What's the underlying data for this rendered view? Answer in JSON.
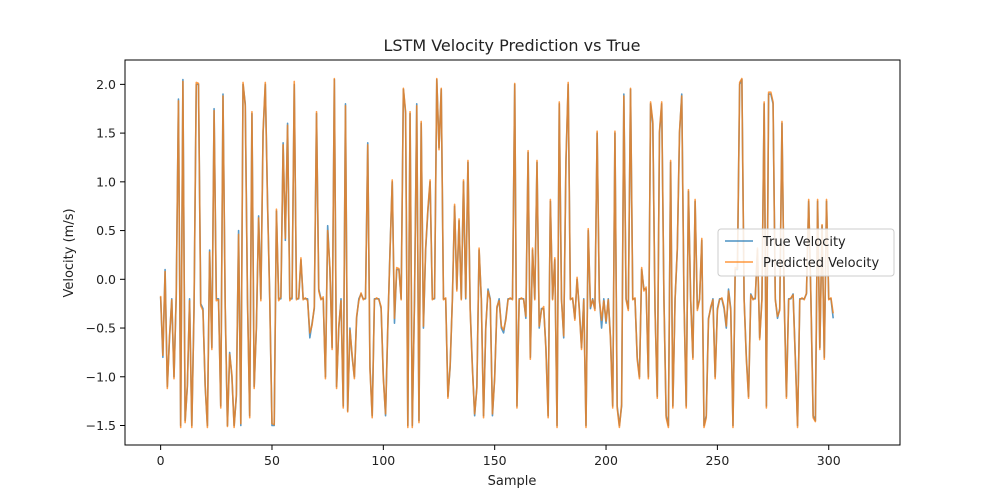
{
  "chart_data": {
    "type": "line",
    "title": "LSTM Velocity Prediction vs True",
    "xlabel": "Sample",
    "ylabel": "Velocity (m/s)",
    "xlim": [
      -16,
      332
    ],
    "ylim": [
      -1.7,
      2.25
    ],
    "xticks": [
      0,
      50,
      100,
      150,
      200,
      250,
      300
    ],
    "yticks": [
      -1.5,
      -1.0,
      -0.5,
      0.0,
      0.5,
      1.0,
      1.5,
      2.0
    ],
    "ytick_labels": [
      "−1.5",
      "−1.0",
      "−0.5",
      "0.0",
      "0.5",
      "1.0",
      "1.5",
      "2.0"
    ],
    "grid": false,
    "legend_position": "center-right",
    "series": [
      {
        "name": "True Velocity",
        "color": "#1f77b4",
        "values": [
          -0.18,
          -0.8,
          0.1,
          -1.1,
          -0.6,
          -0.2,
          -1.0,
          -0.18,
          1.85,
          -1.5,
          2.05,
          -1.45,
          -1.1,
          -0.2,
          -1.5,
          -0.3,
          2.0,
          2.0,
          -0.25,
          -0.3,
          -1.1,
          -1.5,
          0.3,
          -0.7,
          1.75,
          -0.2,
          -0.2,
          -1.3,
          1.9,
          -0.3,
          -1.5,
          -0.75,
          -1.0,
          -1.5,
          -1.2,
          0.5,
          -1.5,
          2.0,
          1.8,
          -0.2,
          -1.4,
          1.7,
          -1.1,
          -0.5,
          0.65,
          -0.2,
          1.5,
          2.0,
          0.8,
          -0.2,
          -1.5,
          -1.5,
          0.7,
          -0.2,
          -0.2,
          1.4,
          0.4,
          1.6,
          -0.2,
          -0.2,
          2.0,
          -0.2,
          -0.2,
          0.2,
          -0.2,
          -0.2,
          -0.2,
          -0.6,
          -0.45,
          -0.3,
          1.7,
          -0.1,
          -0.2,
          -0.2,
          -1.0,
          0.55,
          0.1,
          -0.7,
          2.05,
          -1.1,
          -0.5,
          -0.2,
          -1.3,
          1.8,
          -1.35,
          -0.5,
          -0.8,
          -1.0,
          -0.4,
          -0.2,
          -0.15,
          -0.2,
          -0.2,
          1.4,
          -0.9,
          -1.4,
          -0.2,
          -0.2,
          -0.2,
          -0.3,
          -1.0,
          -1.4,
          -0.5,
          0.3,
          1.0,
          -0.45,
          0.1,
          0.1,
          -0.2,
          1.95,
          1.7,
          -1.5,
          1.7,
          -1.5,
          -0.2,
          1.8,
          -1.45,
          1.6,
          -0.5,
          0.3,
          0.7,
          1.0,
          -0.2,
          -0.2,
          2.05,
          1.35,
          1.95,
          -0.2,
          -0.2,
          -1.2,
          -0.9,
          -0.2,
          0.75,
          -0.1,
          0.6,
          -0.2,
          1.0,
          -0.2,
          1.2,
          -0.3,
          -0.9,
          -1.4,
          -1.1,
          0.3,
          -0.2,
          -1.4,
          -0.5,
          -0.1,
          -0.2,
          -1.4,
          -1.0,
          -0.3,
          -0.2,
          -0.5,
          -0.55,
          -0.4,
          -0.2,
          -0.2,
          -0.2,
          2.0,
          -1.3,
          -0.2,
          -0.2,
          -0.2,
          -0.4,
          1.3,
          -0.8,
          0.3,
          -0.2,
          1.2,
          -0.5,
          -0.3,
          -0.3,
          -0.7,
          -1.4,
          0.8,
          -0.2,
          0.2,
          -1.5,
          1.8,
          -0.2,
          -0.6,
          1.2,
          2.0,
          -0.2,
          -0.2,
          -0.4,
          0.0,
          -0.3,
          -0.7,
          -0.2,
          -1.5,
          0.5,
          -0.3,
          -0.2,
          -0.3,
          1.5,
          -0.2,
          -0.5,
          -0.2,
          -0.45,
          -0.2,
          -0.6,
          -1.3,
          1.5,
          -1.3,
          -1.5,
          -1.3,
          1.9,
          -0.2,
          -0.3,
          1.95,
          -0.2,
          -0.2,
          -0.8,
          -1.0,
          0.1,
          -0.1,
          -0.1,
          -1.0,
          1.8,
          1.6,
          -0.3,
          -1.2,
          1.5,
          1.8,
          -0.2,
          -1.4,
          -1.5,
          1.2,
          -1.3,
          -0.2,
          0.3,
          1.5,
          1.9,
          -0.2,
          -1.3,
          0.9,
          -0.2,
          -0.8,
          0.8,
          -0.3,
          -0.2,
          0.4,
          -1.5,
          -1.4,
          -0.4,
          -0.3,
          -0.2,
          -1.0,
          -0.3,
          -0.2,
          -0.2,
          -0.3,
          -0.5,
          -0.1,
          -0.3,
          -1.5,
          0.1,
          0.1,
          2.0,
          2.05,
          -0.2,
          -0.8,
          -1.2,
          -0.15,
          -0.2,
          -0.2,
          0.3,
          -0.6,
          -0.2,
          1.8,
          -1.3,
          1.9,
          1.9,
          1.8,
          -0.2,
          -0.4,
          -0.3,
          1.6,
          -0.2,
          -1.2,
          -0.2,
          -0.2,
          -0.15,
          -0.8,
          -1.5,
          -0.2,
          -0.2,
          -0.2,
          -0.15,
          0.8,
          -0.2,
          -1.4,
          -1.45,
          0.8,
          -0.7,
          0.55,
          -0.8,
          0.8,
          -0.2,
          -0.2,
          -0.4
        ]
      },
      {
        "name": "Predicted Velocity",
        "color": "#ff7f0e",
        "values": [
          -0.17,
          -0.78,
          0.08,
          -1.12,
          -0.58,
          -0.21,
          -1.02,
          -0.16,
          1.83,
          -1.52,
          2.03,
          -1.47,
          -1.08,
          -0.22,
          -1.52,
          -0.28,
          2.02,
          2.01,
          -0.27,
          -0.32,
          -1.08,
          -1.52,
          0.28,
          -0.72,
          1.73,
          -0.22,
          -0.21,
          -1.32,
          1.88,
          -0.28,
          -1.51,
          -0.77,
          -0.98,
          -1.52,
          -1.18,
          0.46,
          -1.48,
          2.02,
          1.78,
          -0.22,
          -1.42,
          1.72,
          -1.12,
          -0.48,
          0.63,
          -0.22,
          1.52,
          2.02,
          0.78,
          -0.21,
          -1.48,
          -1.49,
          0.72,
          -0.22,
          -0.18,
          1.38,
          0.42,
          1.58,
          -0.22,
          -0.18,
          2.03,
          -0.21,
          -0.19,
          0.22,
          -0.21,
          -0.19,
          -0.22,
          -0.55,
          -0.47,
          -0.28,
          1.72,
          -0.12,
          -0.21,
          -0.18,
          -1.02,
          0.5,
          0.12,
          -0.72,
          2.06,
          -1.12,
          -0.48,
          -0.22,
          -1.32,
          1.78,
          -1.36,
          -0.52,
          -0.78,
          -1.02,
          -0.38,
          -0.22,
          -0.14,
          -0.21,
          -0.19,
          1.38,
          -0.92,
          -1.42,
          -0.21,
          -0.19,
          -0.21,
          -0.28,
          -1.02,
          -1.38,
          -0.48,
          0.28,
          1.02,
          -0.4,
          0.12,
          0.11,
          -0.21,
          1.96,
          1.72,
          -1.52,
          1.72,
          -1.52,
          -0.21,
          1.78,
          -1.47,
          1.62,
          -0.48,
          0.32,
          0.72,
          1.02,
          -0.21,
          -0.19,
          2.06,
          1.33,
          1.96,
          -0.21,
          -0.19,
          -1.22,
          -0.88,
          -0.21,
          0.77,
          -0.12,
          0.62,
          -0.21,
          1.02,
          -0.19,
          1.22,
          -0.32,
          -0.92,
          -1.38,
          -1.12,
          0.32,
          -0.21,
          -1.42,
          -0.48,
          -0.12,
          -0.21,
          -1.38,
          -1.02,
          -0.28,
          -0.22,
          -0.48,
          -0.52,
          -0.42,
          -0.21,
          -0.19,
          -0.21,
          2.01,
          -1.32,
          -0.21,
          -0.19,
          -0.21,
          -0.38,
          1.32,
          -0.82,
          0.32,
          -0.21,
          1.22,
          -0.48,
          -0.32,
          -0.28,
          -0.72,
          -1.42,
          0.82,
          -0.21,
          0.22,
          -1.52,
          1.82,
          -0.21,
          -0.58,
          1.22,
          2.02,
          -0.21,
          -0.19,
          -0.42,
          0.02,
          -0.32,
          -0.72,
          -0.21,
          -1.52,
          0.52,
          -0.28,
          -0.21,
          -0.32,
          1.52,
          -0.21,
          -0.42,
          -0.22,
          -0.43,
          -0.21,
          -0.62,
          -1.32,
          1.52,
          -1.32,
          -1.52,
          -1.28,
          1.88,
          -0.21,
          -0.32,
          1.96,
          -0.21,
          -0.19,
          -0.82,
          -1.02,
          0.12,
          -0.12,
          -0.08,
          -1.02,
          1.82,
          1.62,
          -0.32,
          -1.22,
          1.52,
          1.82,
          -0.21,
          -1.42,
          -1.52,
          1.22,
          -1.32,
          -0.21,
          0.32,
          1.52,
          1.88,
          -0.21,
          -1.32,
          0.92,
          -0.21,
          -0.82,
          0.82,
          -0.32,
          -0.21,
          0.42,
          -1.52,
          -1.42,
          -0.42,
          -0.28,
          -0.21,
          -1.02,
          -0.32,
          -0.21,
          -0.19,
          -0.28,
          -0.48,
          -0.12,
          -0.32,
          -1.52,
          0.12,
          0.11,
          2.02,
          2.06,
          -0.21,
          -0.82,
          -1.22,
          -0.16,
          -0.21,
          -0.19,
          0.32,
          -0.62,
          -0.21,
          1.82,
          -1.32,
          1.92,
          1.92,
          1.82,
          -0.21,
          -0.38,
          -0.32,
          1.62,
          -0.21,
          -1.22,
          -0.21,
          -0.19,
          -0.16,
          -0.82,
          -1.52,
          -0.21,
          -0.19,
          -0.21,
          -0.14,
          0.82,
          -0.21,
          -1.42,
          -1.46,
          0.82,
          -0.72,
          0.56,
          -0.82,
          0.82,
          -0.21,
          -0.19,
          -0.35
        ]
      }
    ]
  }
}
